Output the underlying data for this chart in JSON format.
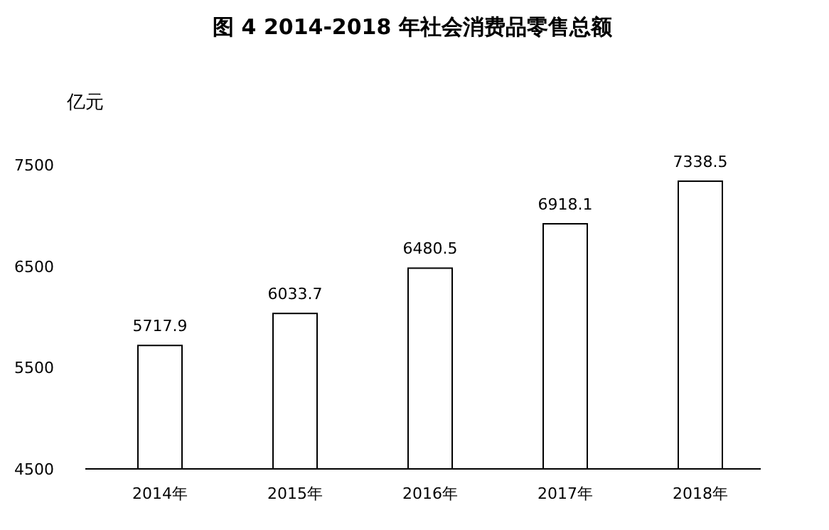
{
  "chart_data": {
    "type": "bar",
    "title": "图 4 2014-2018 年社会消费品零售总额",
    "ylabel": "亿元",
    "categories": [
      "2014年",
      "2015年",
      "2016年",
      "2017年",
      "2018年"
    ],
    "values": [
      5717.9,
      6033.7,
      6480.5,
      6918.1,
      7338.5
    ],
    "color": "#ffffff",
    "ylim": [
      4500,
      7500
    ],
    "yticks": [
      4500,
      5500,
      6500,
      7500
    ],
    "data_labels": true,
    "grid": false
  }
}
